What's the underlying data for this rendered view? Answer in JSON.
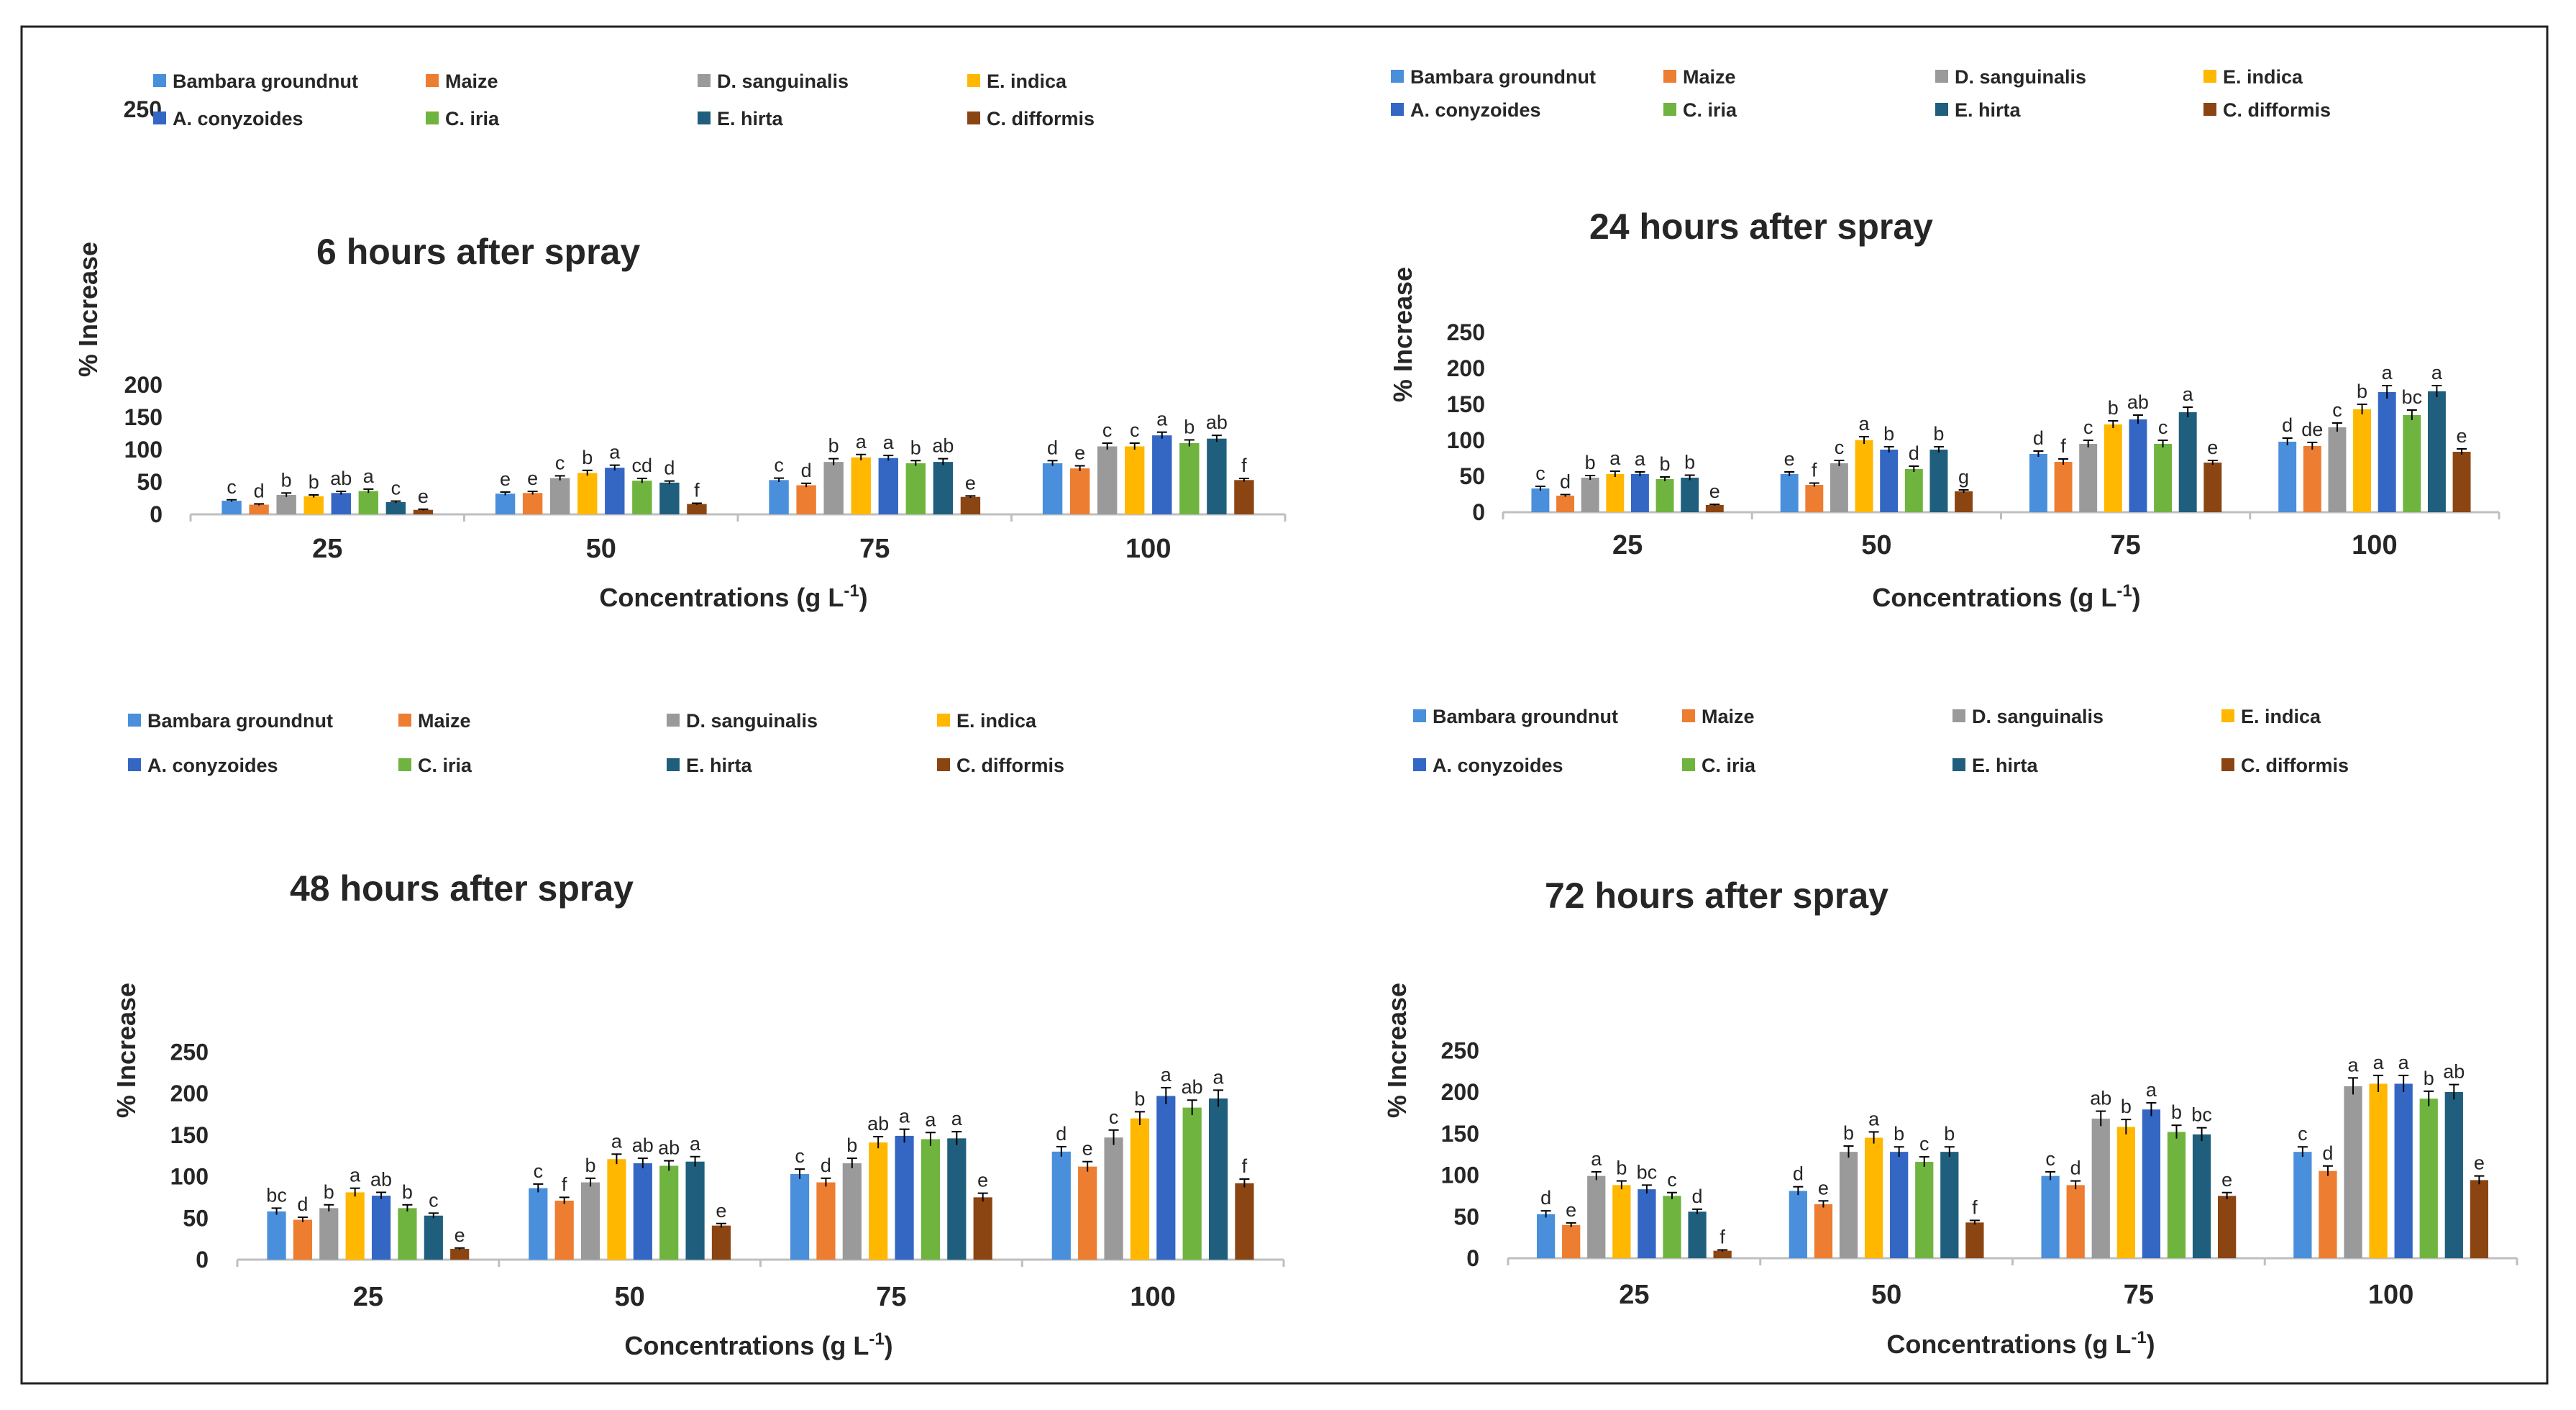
{
  "colors": {
    "Bambara groundnut": "#4a8fdb",
    "Maize": "#ed7d31",
    "D. sanguinalis": "#9a9a9a",
    "E. indica": "#ffb700",
    "A. conyzoides": "#3466c4",
    "C. iria": "#6fb43f",
    "E. hirta": "#1f5f7d",
    "C. difformis": "#8b4513"
  },
  "chart_data": [
    {
      "type": "bar",
      "title": "6 hours after spray",
      "xlabel": "Concentrations (g L",
      "xlabel_sup": "-1",
      "xlabel_end": ")",
      "ylabel": "% Increase",
      "ylim": [
        0,
        250
      ],
      "yticks": [
        "0",
        "50",
        "100",
        "150",
        "200",
        "250"
      ],
      "categories": [
        "25",
        "50",
        "75",
        "100"
      ],
      "series": [
        {
          "name": "Bambara groundnut",
          "values": [
            21,
            32,
            53,
            79
          ],
          "errors": [
            1.5,
            2.5,
            3,
            4
          ],
          "labels": [
            "c",
            "e",
            "c",
            "d"
          ]
        },
        {
          "name": "Maize",
          "values": [
            15,
            33,
            45,
            71
          ],
          "errors": [
            1.2,
            2.5,
            3,
            4
          ],
          "labels": [
            "d",
            "e",
            "d",
            "e"
          ]
        },
        {
          "name": "D. sanguinalis",
          "values": [
            30,
            56,
            81,
            105
          ],
          "errors": [
            3,
            3.5,
            5,
            5
          ],
          "labels": [
            "b",
            "c",
            "b",
            "c"
          ]
        },
        {
          "name": "E. indica",
          "values": [
            28,
            64,
            88,
            105
          ],
          "errors": [
            2,
            4,
            4.5,
            5
          ],
          "labels": [
            "b",
            "b",
            "a",
            "c"
          ]
        },
        {
          "name": "A. conyzoides",
          "values": [
            33,
            72,
            87,
            122
          ],
          "errors": [
            2.5,
            4,
            4,
            5
          ],
          "labels": [
            "ab",
            "a",
            "a",
            "a"
          ]
        },
        {
          "name": "C. iria",
          "values": [
            36,
            52,
            79,
            110
          ],
          "errors": [
            3,
            3.5,
            4,
            5
          ],
          "labels": [
            "a",
            "cd",
            "b",
            "b"
          ]
        },
        {
          "name": "E. hirta",
          "values": [
            19,
            49,
            81,
            117
          ],
          "errors": [
            1.5,
            2.5,
            5,
            5
          ],
          "labels": [
            "c",
            "d",
            "ab",
            "ab"
          ]
        },
        {
          "name": "C. difformis",
          "values": [
            7,
            16,
            27,
            53
          ],
          "errors": [
            1,
            1.2,
            1.5,
            2.5
          ],
          "labels": [
            "e",
            "f",
            "e",
            "f"
          ]
        }
      ]
    },
    {
      "type": "bar",
      "title": "24 hours after spray",
      "xlabel": "Concentrations (g L",
      "xlabel_sup": "-1",
      "xlabel_end": ")",
      "ylabel": "% Increase",
      "ylim": [
        0,
        250
      ],
      "yticks": [
        "0",
        "50",
        "100",
        "150",
        "200",
        "250"
      ],
      "categories": [
        "25",
        "50",
        "75",
        "100"
      ],
      "series": [
        {
          "name": "Bambara groundnut",
          "values": [
            33,
            53,
            81,
            98
          ],
          "errors": [
            3,
            3,
            4,
            5
          ],
          "labels": [
            "c",
            "e",
            "d",
            "d"
          ]
        },
        {
          "name": "Maize",
          "values": [
            23,
            38,
            70,
            92
          ],
          "errors": [
            1.5,
            2.5,
            4,
            5
          ],
          "labels": [
            "d",
            "f",
            "f",
            "de"
          ]
        },
        {
          "name": "D. sanguinalis",
          "values": [
            48,
            68,
            95,
            118
          ],
          "errors": [
            3,
            4,
            5,
            6
          ],
          "labels": [
            "b",
            "c",
            "c",
            "c"
          ]
        },
        {
          "name": "E. indica",
          "values": [
            53,
            100,
            122,
            143
          ],
          "errors": [
            4,
            5,
            5,
            7
          ],
          "labels": [
            "a",
            "a",
            "b",
            "b"
          ]
        },
        {
          "name": "A. conyzoides",
          "values": [
            53,
            87,
            129,
            167
          ],
          "errors": [
            3,
            4,
            6,
            9
          ],
          "labels": [
            "a",
            "b",
            "ab",
            "a"
          ]
        },
        {
          "name": "C. iria",
          "values": [
            46,
            60,
            95,
            135
          ],
          "errors": [
            3,
            4,
            5,
            7
          ],
          "labels": [
            "b",
            "d",
            "c",
            "bc"
          ]
        },
        {
          "name": "E. hirta",
          "values": [
            48,
            87,
            139,
            168
          ],
          "errors": [
            3.5,
            4,
            7,
            8
          ],
          "labels": [
            "b",
            "b",
            "a",
            "a"
          ]
        },
        {
          "name": "C. difformis",
          "values": [
            10,
            29,
            69,
            84
          ],
          "errors": [
            1,
            2,
            3,
            4
          ],
          "labels": [
            "e",
            "g",
            "e",
            "e"
          ]
        }
      ]
    },
    {
      "type": "bar",
      "title": "48 hours after spray",
      "xlabel": "Concentrations (g L",
      "xlabel_sup": "-1",
      "xlabel_end": ")",
      "ylabel": "% Increase",
      "ylim": [
        0,
        250
      ],
      "yticks": [
        "0",
        "50",
        "100",
        "150",
        "200",
        "250"
      ],
      "categories": [
        "25",
        "50",
        "75",
        "100"
      ],
      "series": [
        {
          "name": "Bambara groundnut",
          "values": [
            58,
            86,
            103,
            130
          ],
          "errors": [
            4,
            5,
            6,
            6
          ],
          "labels": [
            "bc",
            "c",
            "c",
            "d"
          ]
        },
        {
          "name": "Maize",
          "values": [
            48,
            71,
            93,
            112
          ],
          "errors": [
            3,
            4,
            5,
            6
          ],
          "labels": [
            "d",
            "f",
            "d",
            "e"
          ]
        },
        {
          "name": "D. sanguinalis",
          "values": [
            62,
            93,
            116,
            147
          ],
          "errors": [
            4,
            5,
            6,
            9
          ],
          "labels": [
            "b",
            "b",
            "b",
            "c"
          ]
        },
        {
          "name": "E. indica",
          "values": [
            81,
            121,
            141,
            170
          ],
          "errors": [
            5,
            6,
            7,
            8
          ],
          "labels": [
            "a",
            "a",
            "ab",
            "b"
          ]
        },
        {
          "name": "A. conyzoides",
          "values": [
            77,
            116,
            149,
            197
          ],
          "errors": [
            4,
            6,
            8,
            10
          ],
          "labels": [
            "ab",
            "ab",
            "a",
            "a"
          ]
        },
        {
          "name": "C. iria",
          "values": [
            62,
            113,
            145,
            183
          ],
          "errors": [
            4,
            6,
            8,
            9
          ],
          "labels": [
            "b",
            "ab",
            "a",
            "ab"
          ]
        },
        {
          "name": "E. hirta",
          "values": [
            53,
            118,
            146,
            194
          ],
          "errors": [
            3,
            6,
            8,
            10
          ],
          "labels": [
            "c",
            "a",
            "a",
            "a"
          ]
        },
        {
          "name": "C. difformis",
          "values": [
            13,
            41,
            75,
            92
          ],
          "errors": [
            1,
            2.5,
            5,
            5
          ],
          "labels": [
            "e",
            "e",
            "e",
            "f"
          ]
        }
      ]
    },
    {
      "type": "bar",
      "title": "72 hours after spray",
      "xlabel": "Concentrations (g L",
      "xlabel_sup": "-1",
      "xlabel_end": ")",
      "ylabel": "% Increase",
      "ylim": [
        0,
        250
      ],
      "yticks": [
        "0",
        "50",
        "100",
        "150",
        "200",
        "250"
      ],
      "categories": [
        "25",
        "50",
        "75",
        "100"
      ],
      "series": [
        {
          "name": "Bambara groundnut",
          "values": [
            53,
            81,
            99,
            128
          ],
          "errors": [
            4,
            5,
            5,
            6
          ],
          "labels": [
            "d",
            "d",
            "c",
            "c"
          ]
        },
        {
          "name": "Maize",
          "values": [
            40,
            65,
            88,
            105
          ],
          "errors": [
            2.5,
            4,
            5,
            6
          ],
          "labels": [
            "e",
            "e",
            "d",
            "d"
          ]
        },
        {
          "name": "D. sanguinalis",
          "values": [
            99,
            128,
            168,
            207
          ],
          "errors": [
            5,
            7,
            9,
            10
          ],
          "labels": [
            "a",
            "b",
            "ab",
            "a"
          ]
        },
        {
          "name": "E. indica",
          "values": [
            88,
            145,
            158,
            210
          ],
          "errors": [
            5,
            7,
            9,
            10
          ],
          "labels": [
            "b",
            "a",
            "b",
            "a"
          ]
        },
        {
          "name": "A. conyzoides",
          "values": [
            83,
            128,
            179,
            210
          ],
          "errors": [
            5,
            6,
            8,
            10
          ],
          "labels": [
            "bc",
            "b",
            "a",
            "a"
          ]
        },
        {
          "name": "C. iria",
          "values": [
            75,
            116,
            152,
            192
          ],
          "errors": [
            4,
            6,
            8,
            9
          ],
          "labels": [
            "c",
            "c",
            "b",
            "b"
          ]
        },
        {
          "name": "E. hirta",
          "values": [
            56,
            128,
            149,
            200
          ],
          "errors": [
            3,
            6,
            8,
            9
          ],
          "labels": [
            "d",
            "b",
            "bc",
            "ab"
          ]
        },
        {
          "name": "C. difformis",
          "values": [
            9,
            43,
            75,
            94
          ],
          "errors": [
            1,
            2.5,
            4,
            5
          ],
          "labels": [
            "f",
            "f",
            "e",
            "e"
          ]
        }
      ]
    }
  ]
}
